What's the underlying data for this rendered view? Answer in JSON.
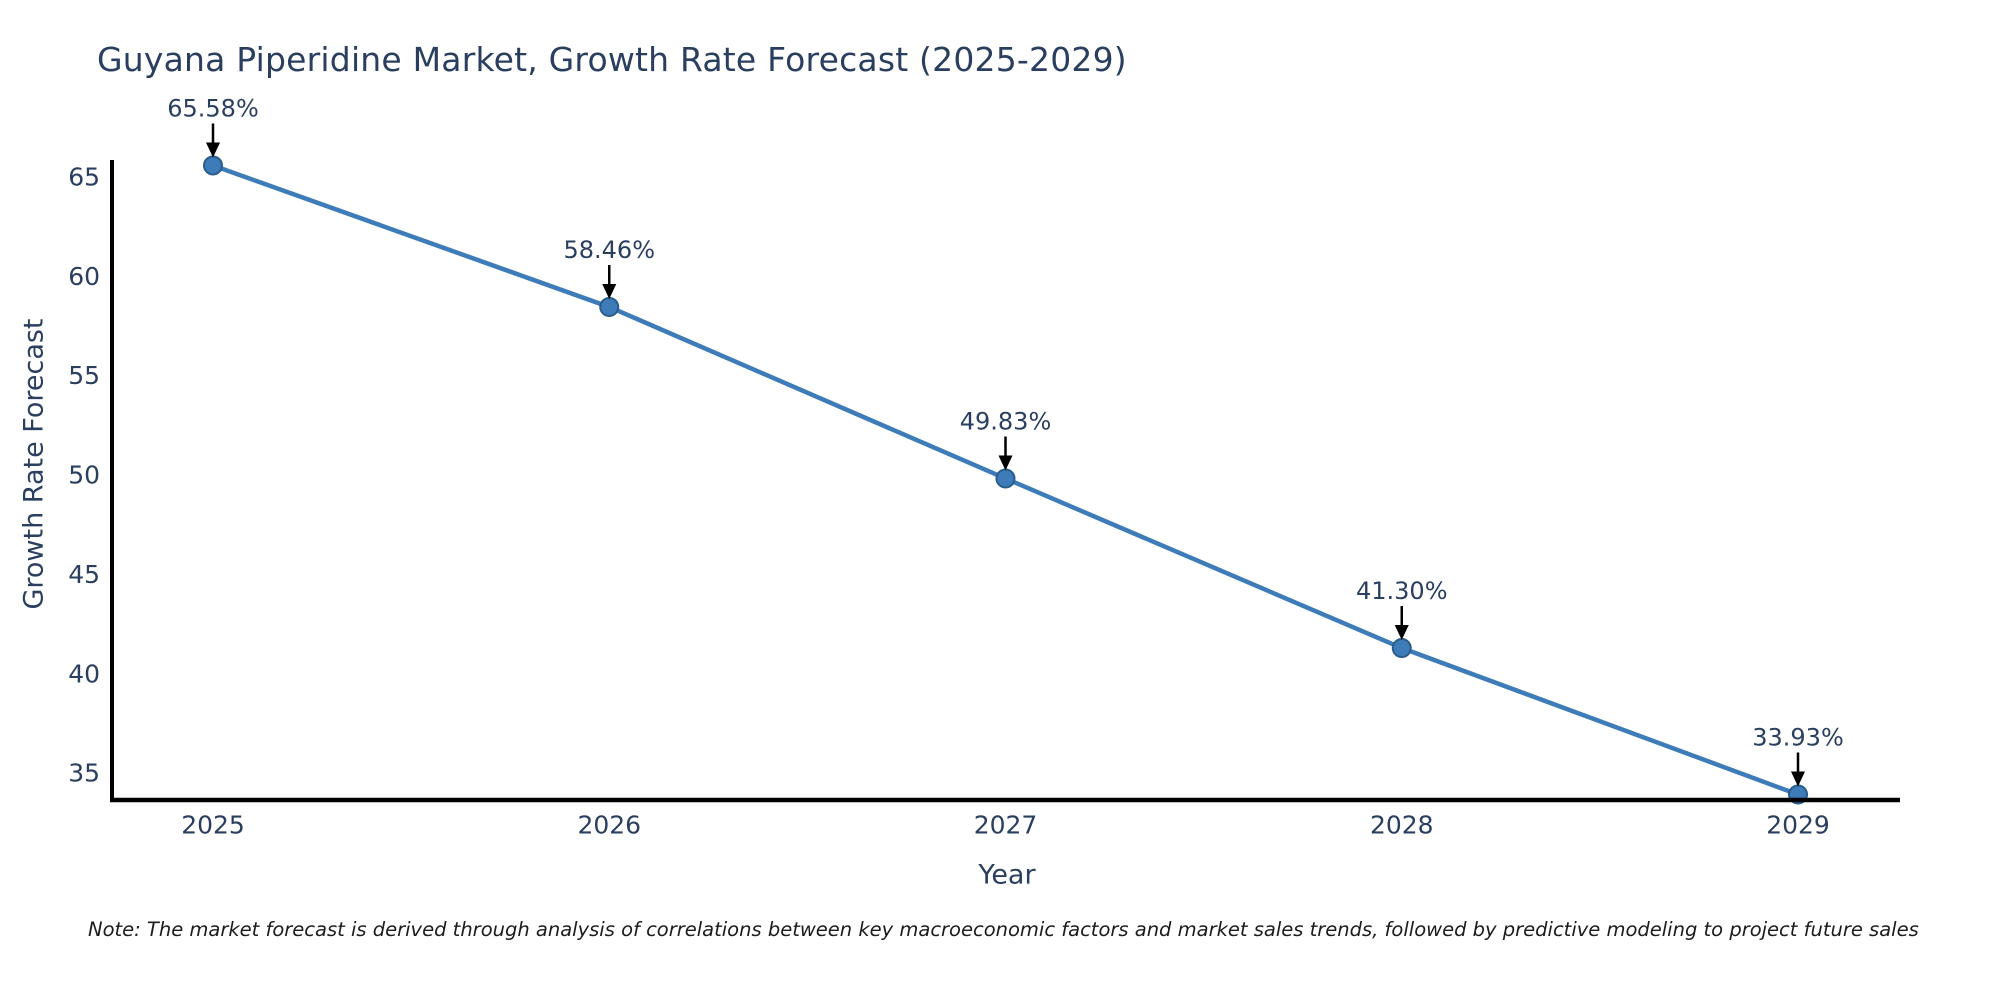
{
  "title": "Guyana Piperidine Market, Growth Rate Forecast (2025-2029)",
  "note": "Note: The market forecast is derived through analysis of correlations between key macroeconomic factors and market sales trends, followed by predictive modeling to project future sales",
  "chart_data": {
    "type": "line",
    "title": "Guyana Piperidine Market, Growth Rate Forecast (2025-2029)",
    "xlabel": "Year",
    "ylabel": "Growth Rate Forecast",
    "x": [
      2025,
      2026,
      2027,
      2028,
      2029
    ],
    "values": [
      65.58,
      58.46,
      49.83,
      41.3,
      33.93
    ],
    "point_labels": [
      "65.58%",
      "58.46%",
      "49.83%",
      "41.30%",
      "33.93%"
    ],
    "yticks": [
      35,
      40,
      45,
      50,
      55,
      60,
      65
    ],
    "ylim": [
      33.4,
      66.0
    ],
    "grid": false,
    "legend": false,
    "annotation_style": "value label with downward arrow above each marker",
    "colors": {
      "line": "#3d7cb8",
      "marker_fill": "#3d7cb8",
      "marker_edge": "#2b5d8c",
      "axis": "#000000",
      "text": "#2a3f5f",
      "arrow": "#000000",
      "note_text": "#1c1c1c",
      "background": "#ffffff"
    }
  }
}
